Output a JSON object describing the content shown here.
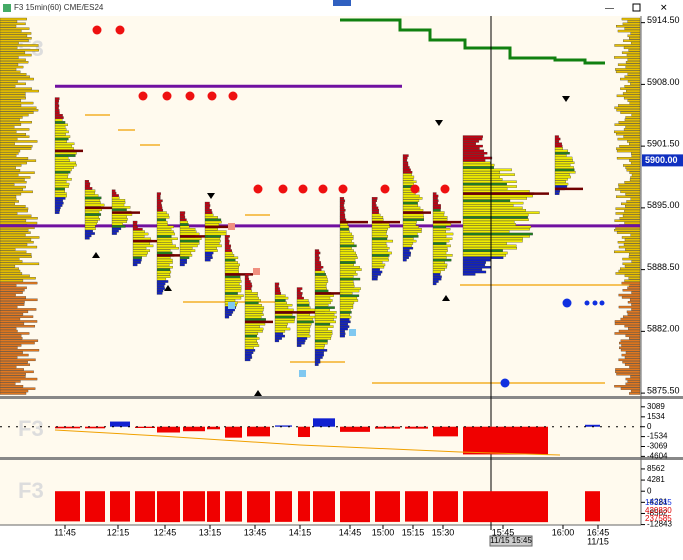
{
  "window": {
    "title": "F3 15min(60) CME/ES24"
  },
  "watermarks": [
    "F3",
    "F3",
    "F3"
  ],
  "price_axis": {
    "ylim": [
      5875.3,
      5915.2
    ],
    "ticks": [
      {
        "value": 5914.5,
        "label": "5914.50"
      },
      {
        "value": 5908,
        "label": "5908.00"
      },
      {
        "value": 5901.5,
        "label": "5901.50"
      },
      {
        "value": 5895,
        "label": "5895.00"
      },
      {
        "value": 5888.5,
        "label": "5888.50"
      },
      {
        "value": 5882,
        "label": "5882.00"
      },
      {
        "value": 5875.5,
        "label": "5875.50"
      }
    ],
    "current": {
      "value": 5900,
      "label": "5900.00"
    }
  },
  "profiles": [
    {
      "high": 5906.5,
      "low": 5894.5,
      "poc": 5901
    },
    {
      "high": 5898,
      "low": 5891.8,
      "poc": 5895
    },
    {
      "high": 5897,
      "low": 5892.3,
      "poc": 5894.5
    },
    {
      "high": 5893.5,
      "low": 5889,
      "poc": 5891.5
    },
    {
      "high": 5896.5,
      "low": 5886,
      "poc": 5890
    },
    {
      "high": 5894.5,
      "low": 5889,
      "poc": 5892
    },
    {
      "high": 5895.5,
      "low": 5889.5,
      "poc": 5893
    },
    {
      "high": 5892,
      "low": 5883.5,
      "poc": 5888
    },
    {
      "high": 5888,
      "low": 5879,
      "poc": 5883
    },
    {
      "high": 5887,
      "low": 5881,
      "poc": 5884
    },
    {
      "high": 5886.5,
      "low": 5880.5,
      "poc": 5884
    },
    {
      "high": 5890.5,
      "low": 5878.5,
      "poc": 5886
    },
    {
      "high": 5896,
      "low": 5881.5,
      "poc": 5893.5
    },
    {
      "high": 5896,
      "low": 5887.5,
      "poc": 5893.5
    },
    {
      "high": 5900.5,
      "low": 5889.5,
      "poc": 5894.5
    },
    {
      "high": 5896.5,
      "low": 5887,
      "poc": 5893.5
    },
    {
      "high": 5902.5,
      "low": 5888,
      "poc": 5896.5
    },
    {
      "high": 5902.5,
      "low": 5896.5,
      "poc": 5897
    }
  ],
  "levels": [
    5907.8,
    5893.1
  ],
  "delta_panel": {
    "ylim": [
      -4700,
      4300
    ],
    "ticks": [
      3089,
      1534,
      0,
      -1534,
      -3069,
      -4604
    ],
    "values": [
      -250,
      -250,
      800,
      -200,
      -900,
      -700,
      -400,
      -1700,
      -1500,
      200,
      -1600,
      1300,
      -800,
      -300,
      -300,
      -1500,
      -4300,
      300
    ]
  },
  "volume_panel": {
    "ylim": [
      -13000,
      12000
    ],
    "ticks": [
      8562,
      4281,
      0,
      -4281,
      -8562,
      -12843
    ],
    "values": [
      -11600,
      -11800,
      -11700,
      -11800,
      -11900,
      -11600,
      -11800,
      -11700,
      -12000,
      -11800,
      -11600,
      -11800,
      -11900,
      -11800,
      -11700,
      -11800,
      -11900,
      -11600
    ],
    "totals": [
      183245,
      420830,
      237585
    ]
  },
  "time_axis": {
    "labels": [
      "11:45",
      "12:15",
      "12:45",
      "13:15",
      "13:45",
      "14:15",
      "14:45",
      "15:00",
      "15:15",
      "15:30",
      "15:45",
      "16:00",
      "16:45"
    ],
    "date": "11/15",
    "cursor": "11/15 15:45"
  }
}
